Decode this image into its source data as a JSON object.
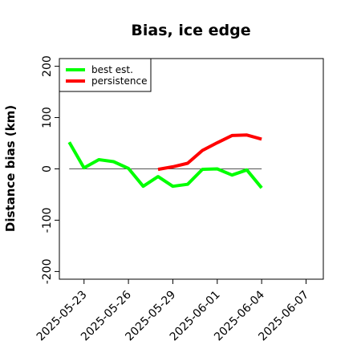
{
  "chart_data": {
    "type": "line",
    "title": "Bias, ice edge",
    "xlabel": "",
    "ylabel": "Distance bias (km)",
    "x_ticks": [
      "2025-05-23",
      "2025-05-26",
      "2025-05-29",
      "2025-06-01",
      "2025-06-04",
      "2025-06-07"
    ],
    "y_ticks": [
      -200,
      -100,
      0,
      100,
      200
    ],
    "ylim": [
      -215,
      215
    ],
    "xlim": [
      "2025-05-21T08:00",
      "2025-06-08T04:00"
    ],
    "reference_line": 0,
    "legend_position": "top-left",
    "series": [
      {
        "name": "best est.",
        "color": "#00ff00",
        "x": [
          "2025-05-22",
          "2025-05-23",
          "2025-05-24",
          "2025-05-25",
          "2025-05-26",
          "2025-05-27",
          "2025-05-28",
          "2025-05-29",
          "2025-05-30",
          "2025-05-31",
          "2025-06-01",
          "2025-06-02",
          "2025-06-03",
          "2025-06-04"
        ],
        "values": [
          52,
          2,
          18,
          14,
          1,
          -34,
          -15,
          -34,
          -30,
          -1,
          0,
          -12,
          -2,
          -37
        ]
      },
      {
        "name": "persistence",
        "color": "#ff0000",
        "x": [
          "2025-05-28",
          "2025-05-29",
          "2025-05-30",
          "2025-05-31",
          "2025-06-01",
          "2025-06-02",
          "2025-06-03",
          "2025-06-04"
        ],
        "values": [
          -1,
          4,
          11,
          36,
          51,
          65,
          66,
          58
        ]
      }
    ]
  }
}
